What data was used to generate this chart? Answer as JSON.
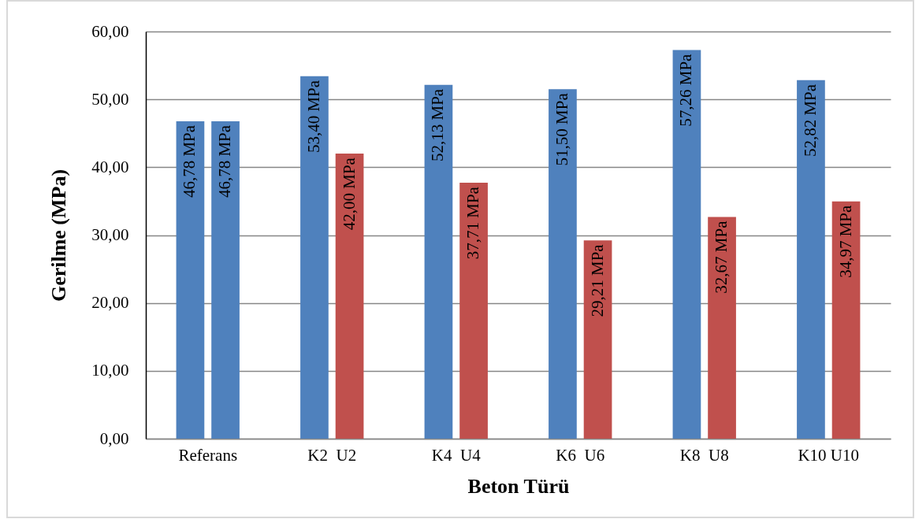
{
  "chart_data": {
    "type": "bar",
    "xlabel": "Beton Türü",
    "ylabel": "Gerilme (MPa)",
    "categories": [
      "Referans",
      "K2  U2",
      "K4  U4",
      "K6  U6",
      "K8  U8",
      "K10 U10"
    ],
    "series": [
      {
        "color": "#4f81bd",
        "values": [
          46.78,
          53.4,
          52.13,
          51.5,
          57.26,
          52.82
        ],
        "value_labels": [
          "46,78 MPa",
          "53,40 MPa",
          "52,13 MPa",
          "51,50 MPa",
          "57,26 MPa",
          "52,82 MPa"
        ]
      },
      {
        "colors": [
          "#4f81bd",
          "#c0504d",
          "#c0504d",
          "#c0504d",
          "#c0504d",
          "#c0504d"
        ],
        "values": [
          46.78,
          42.0,
          37.71,
          29.21,
          32.67,
          34.97
        ],
        "value_labels": [
          "46,78 MPa",
          "42,00 MPa",
          "37,71 MPa",
          "29,21 MPa",
          "32,67 MPa",
          "34,97 MPa"
        ]
      }
    ],
    "ylim": [
      0,
      60
    ],
    "yticks": [
      {
        "value": 0,
        "label": "0,00"
      },
      {
        "value": 10,
        "label": "10,00"
      },
      {
        "value": 20,
        "label": "20,00"
      },
      {
        "value": 30,
        "label": "30,00"
      },
      {
        "value": 40,
        "label": "40,00"
      },
      {
        "value": 50,
        "label": "50,00"
      },
      {
        "value": 60,
        "label": "60,00"
      }
    ],
    "grid": "y"
  }
}
